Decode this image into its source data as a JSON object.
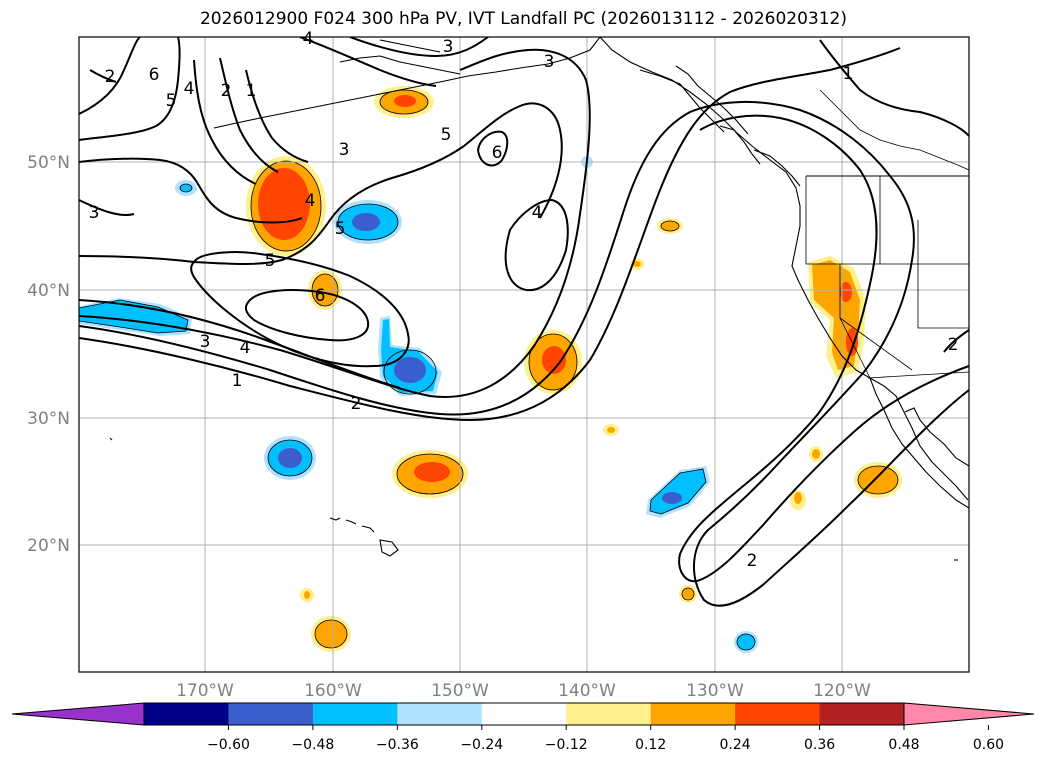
{
  "title": "2026012900 F024 300 hPa PV, IVT Landfall PC (2026013112 - 2026020312)",
  "lat_labels": [
    "50°N",
    "40°N",
    "30°N",
    "20°N"
  ],
  "lon_labels": [
    "170°W",
    "160°W",
    "150°W",
    "140°W",
    "130°W",
    "120°W"
  ],
  "colorbar": {
    "ticks": [
      "−0.60",
      "−0.48",
      "−0.36",
      "−0.24",
      "−0.12",
      "0.12",
      "0.24",
      "0.36",
      "0.48",
      "0.60"
    ],
    "colors": [
      "#9932cc",
      "#00008b",
      "#3a5fcd",
      "#00bfff",
      "#b0e2ff",
      "#ffffff",
      "#fff08c",
      "#ffa500",
      "#ff4500",
      "#b22222",
      "#ff88aa"
    ]
  },
  "contour_labels": [
    "1",
    "2",
    "3",
    "4",
    "5",
    "6",
    "4",
    "5",
    "2",
    "1",
    "3",
    "4",
    "5",
    "6",
    "3",
    "6",
    "3",
    "5",
    "4",
    "3",
    "2",
    "1",
    "4",
    "2",
    "2",
    "1",
    "3",
    "5",
    "6",
    "1"
  ],
  "colors": {
    "contour": "#000000",
    "grid": "#b0b0b0",
    "land": "#000000"
  }
}
